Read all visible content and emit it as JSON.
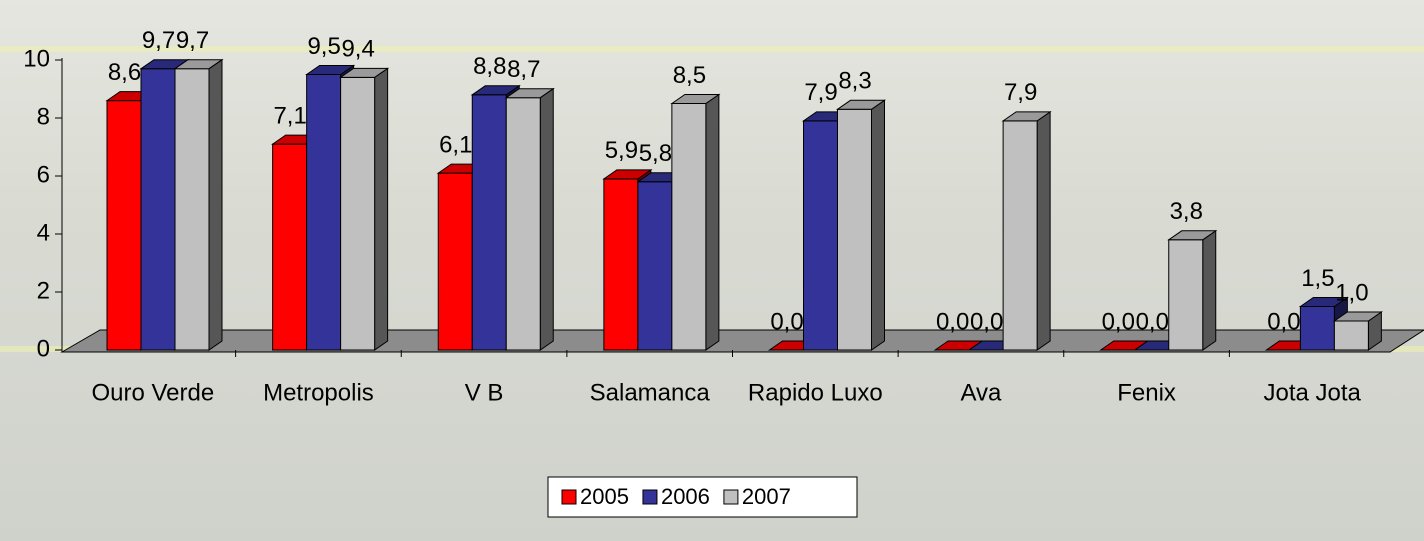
{
  "chart_data": {
    "type": "bar3d",
    "categories": [
      "Ouro Verde",
      "Metropolis",
      "V B",
      "Salamanca",
      "Rapido Luxo",
      "Ava",
      "Fenix",
      "Jota Jota"
    ],
    "series": [
      {
        "name": "2005",
        "color": "#ff0000",
        "values": [
          8.6,
          7.1,
          6.1,
          5.9,
          0,
          0,
          0,
          0
        ],
        "value_labels": [
          "8,6",
          "7,1",
          "6,1",
          "5,9",
          "0,0",
          "0,0",
          "0,0",
          "0,0"
        ]
      },
      {
        "name": "2006",
        "color": "#333399",
        "values": [
          9.7,
          9.5,
          8.8,
          5.8,
          7.9,
          0,
          0,
          1.5
        ],
        "value_labels": [
          "9,7",
          "9,5",
          "8,8",
          "5,8",
          "7,9",
          "0,0",
          "0,0",
          "1,5"
        ]
      },
      {
        "name": "2007",
        "color": "#c0c0c0",
        "values": [
          9.7,
          9.4,
          8.7,
          8.5,
          8.3,
          7.9,
          3.8,
          1.0
        ],
        "value_labels": [
          "9,7",
          "9,4",
          "8,7",
          "8,5",
          "8,3",
          "7,9",
          "3,8",
          "1,0"
        ]
      }
    ],
    "ylim": [
      0,
      10
    ],
    "yticks": [
      0,
      2,
      4,
      6,
      8,
      10
    ],
    "legend": "bottom"
  }
}
